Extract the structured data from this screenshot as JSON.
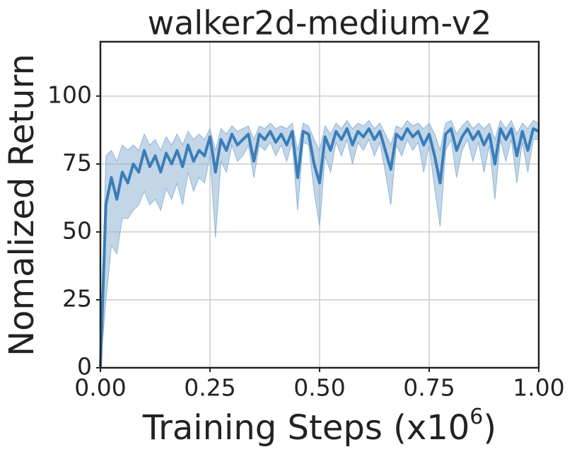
{
  "chart_data": {
    "type": "line",
    "title": "walker2d-medium-v2",
    "xlabel": {
      "text": "Training Steps (x10",
      "superscript": "6",
      "suffix": ")"
    },
    "ylabel": "Nomalized Return",
    "x": [
      0,
      0.0125,
      0.025,
      0.0375,
      0.05,
      0.0625,
      0.075,
      0.0875,
      0.1,
      0.1125,
      0.125,
      0.1375,
      0.15,
      0.1625,
      0.175,
      0.1875,
      0.2,
      0.2125,
      0.225,
      0.2375,
      0.25,
      0.2625,
      0.275,
      0.2875,
      0.3,
      0.3125,
      0.325,
      0.3375,
      0.35,
      0.3625,
      0.375,
      0.3875,
      0.4,
      0.4125,
      0.425,
      0.4375,
      0.45,
      0.4625,
      0.475,
      0.4875,
      0.5,
      0.5125,
      0.525,
      0.5375,
      0.55,
      0.5625,
      0.575,
      0.5875,
      0.6,
      0.6125,
      0.625,
      0.6375,
      0.65,
      0.6625,
      0.675,
      0.6875,
      0.7,
      0.7125,
      0.725,
      0.7375,
      0.75,
      0.7625,
      0.775,
      0.7875,
      0.8,
      0.8125,
      0.825,
      0.8375,
      0.85,
      0.8625,
      0.875,
      0.8875,
      0.9,
      0.9125,
      0.925,
      0.9375,
      0.95,
      0.9625,
      0.975,
      0.9875,
      1.0
    ],
    "series": [
      {
        "color": "#3a7db8",
        "band_color": "#8fb5d6",
        "values": [
          0,
          60,
          70,
          62,
          72,
          68,
          75,
          72,
          80,
          74,
          78,
          72,
          79,
          75,
          80,
          74,
          82,
          76,
          80,
          78,
          85,
          72,
          84,
          80,
          86,
          82,
          84,
          86,
          76,
          86,
          84,
          87,
          83,
          86,
          82,
          87,
          70,
          87,
          86,
          75,
          68,
          85,
          80,
          87,
          84,
          88,
          82,
          87,
          85,
          88,
          84,
          87,
          80,
          73,
          86,
          84,
          88,
          85,
          87,
          82,
          86,
          78,
          68,
          86,
          88,
          80,
          85,
          88,
          84,
          87,
          82,
          86,
          75,
          88,
          84,
          88,
          78,
          87,
          80,
          88,
          87
        ],
        "lower": [
          0,
          25,
          45,
          42,
          55,
          55,
          58,
          60,
          65,
          60,
          62,
          58,
          66,
          62,
          68,
          60,
          72,
          65,
          70,
          68,
          78,
          48,
          76,
          72,
          82,
          76,
          78,
          82,
          70,
          82,
          80,
          83,
          78,
          82,
          76,
          83,
          58,
          83,
          82,
          65,
          52,
          78,
          72,
          83,
          78,
          84,
          75,
          83,
          80,
          84,
          78,
          83,
          72,
          60,
          82,
          78,
          84,
          80,
          83,
          72,
          82,
          66,
          52,
          80,
          84,
          70,
          80,
          84,
          76,
          83,
          72,
          82,
          62,
          84,
          76,
          84,
          68,
          83,
          72,
          84,
          84
        ],
        "upper": [
          0,
          78,
          80,
          76,
          82,
          80,
          82,
          80,
          86,
          82,
          84,
          80,
          85,
          82,
          86,
          82,
          87,
          84,
          86,
          84,
          88,
          80,
          88,
          86,
          89,
          87,
          88,
          89,
          84,
          89,
          88,
          90,
          88,
          89,
          88,
          90,
          80,
          90,
          89,
          84,
          80,
          89,
          86,
          90,
          88,
          91,
          88,
          90,
          89,
          91,
          88,
          90,
          86,
          82,
          89,
          88,
          91,
          89,
          90,
          88,
          90,
          86,
          80,
          90,
          91,
          86,
          89,
          91,
          88,
          90,
          88,
          90,
          84,
          91,
          88,
          91,
          86,
          90,
          88,
          91,
          90
        ]
      }
    ],
    "xlim": [
      0,
      1
    ],
    "xticks": [
      {
        "value": 0,
        "label": "0.00"
      },
      {
        "value": 0.25,
        "label": "0.25"
      },
      {
        "value": 0.5,
        "label": "0.50"
      },
      {
        "value": 0.75,
        "label": "0.75"
      },
      {
        "value": 1,
        "label": "1.00"
      }
    ],
    "ylim": [
      0,
      120
    ],
    "yticks": [
      0,
      25,
      50,
      75,
      100
    ],
    "grid": true
  }
}
